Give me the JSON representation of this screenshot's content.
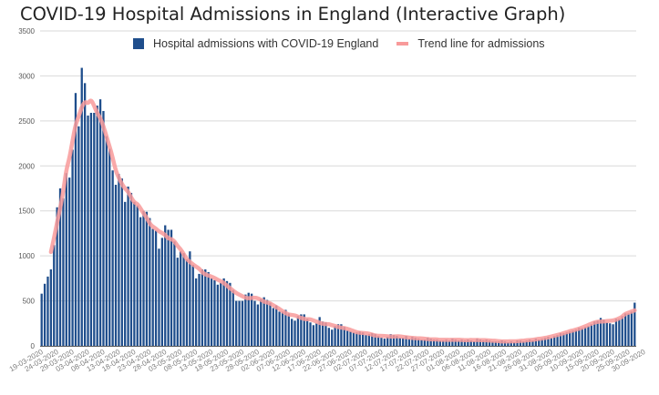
{
  "chart_data": {
    "type": "bar",
    "title": "COVID-19 Hospital Admissions in England (Interactive Graph)",
    "xlabel": "",
    "ylabel": "",
    "ylim": [
      0,
      3500
    ],
    "y_ticks": [
      0,
      500,
      1000,
      1500,
      2000,
      2500,
      3000,
      3500
    ],
    "grid": true,
    "legend_position": "top",
    "start_date": "19-03-2020",
    "end_date": "30-09-2020",
    "x_tick_labels": [
      "19-03-2020",
      "24-03-2020",
      "29-03-2020",
      "03-04-2020",
      "08-04-2020",
      "13-04-2020",
      "18-04-2020",
      "23-04-2020",
      "28-04-2020",
      "03-05-2020",
      "08-05-2020",
      "13-05-2020",
      "18-05-2020",
      "23-05-2020",
      "28-05-2020",
      "02-06-2020",
      "07-06-2020",
      "12-06-2020",
      "17-06-2020",
      "22-06-2020",
      "27-06-2020",
      "02-07-2020",
      "07-07-2020",
      "12-07-2020",
      "17-07-2020",
      "22-07-2020",
      "27-07-2020",
      "01-08-2020",
      "06-08-2020",
      "11-08-2020",
      "16-08-2020",
      "21-08-2020",
      "26-08-2020",
      "31-08-2020",
      "05-09-2020",
      "10-09-2020",
      "15-09-2020",
      "20-09-2020",
      "25-09-2020",
      "30-09-2020"
    ],
    "series": [
      {
        "name": "Hospital admissions with COVID-19 England",
        "kind": "bar",
        "color": "#1f4e8c",
        "values": [
          580,
          690,
          770,
          850,
          1120,
          1540,
          1750,
          1640,
          1920,
          1870,
          2180,
          2810,
          2440,
          3090,
          2920,
          2560,
          2590,
          2590,
          2670,
          2740,
          2610,
          2330,
          2190,
          1950,
          1790,
          1910,
          1860,
          1600,
          1770,
          1700,
          1600,
          1560,
          1430,
          1500,
          1490,
          1420,
          1300,
          1280,
          1080,
          1200,
          1340,
          1290,
          1290,
          1160,
          980,
          1050,
          1030,
          960,
          1050,
          900,
          750,
          800,
          850,
          850,
          820,
          750,
          730,
          680,
          700,
          750,
          720,
          700,
          620,
          500,
          500,
          500,
          570,
          590,
          580,
          500,
          460,
          520,
          540,
          510,
          480,
          420,
          450,
          380,
          380,
          400,
          360,
          300,
          280,
          330,
          350,
          350,
          300,
          260,
          230,
          250,
          320,
          270,
          260,
          200,
          180,
          220,
          240,
          240,
          210,
          170,
          160,
          150,
          150,
          160,
          150,
          120,
          130,
          140,
          130,
          110,
          90,
          80,
          100,
          130,
          120,
          110,
          90,
          90,
          110,
          80,
          100,
          90,
          80,
          70,
          70,
          90,
          80,
          70,
          70,
          60,
          60,
          70,
          60,
          80,
          70,
          60,
          70,
          60,
          70,
          60,
          50,
          80,
          70,
          60,
          70,
          60,
          50,
          50,
          50,
          60,
          50,
          40,
          50,
          40,
          60,
          60,
          50,
          60,
          70,
          60,
          80,
          70,
          80,
          90,
          100,
          90,
          110,
          120,
          140,
          140,
          150,
          160,
          170,
          180,
          200,
          200,
          210,
          220,
          240,
          270,
          280,
          310,
          290,
          260,
          250,
          240,
          300,
          300,
          330,
          360,
          360,
          380,
          480
        ],
        "note": "values estimated from bar heights"
      },
      {
        "name": "Trend line for admissions",
        "kind": "line",
        "color": "#f89a9a",
        "method": "7-day centered moving average of admissions"
      }
    ]
  },
  "legend": {
    "items": [
      {
        "label": "Hospital admissions with COVID-19 England",
        "color": "#1f4e8c"
      },
      {
        "label": "Trend line for admissions",
        "color": "#f89a9a"
      }
    ]
  }
}
